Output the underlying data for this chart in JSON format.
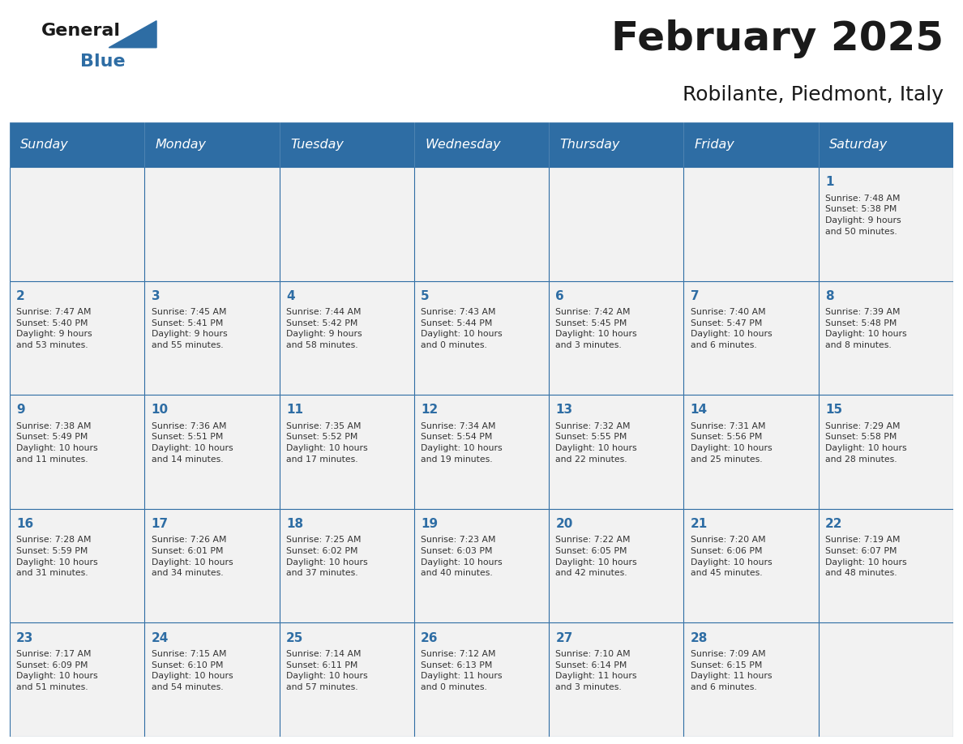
{
  "title": "February 2025",
  "subtitle": "Robilante, Piedmont, Italy",
  "days_of_week": [
    "Sunday",
    "Monday",
    "Tuesday",
    "Wednesday",
    "Thursday",
    "Friday",
    "Saturday"
  ],
  "header_bg": "#2E6DA4",
  "header_text": "#FFFFFF",
  "cell_bg_light": "#F2F2F2",
  "cell_bg_white": "#FFFFFF",
  "cell_border": "#2E6DA4",
  "day_num_color": "#2E6DA4",
  "info_text_color": "#333333",
  "title_color": "#1a1a1a",
  "logo_general_color": "#1a1a1a",
  "logo_blue_color": "#2E6DA4",
  "calendar_data": [
    [
      {
        "day": null,
        "info": ""
      },
      {
        "day": null,
        "info": ""
      },
      {
        "day": null,
        "info": ""
      },
      {
        "day": null,
        "info": ""
      },
      {
        "day": null,
        "info": ""
      },
      {
        "day": null,
        "info": ""
      },
      {
        "day": 1,
        "info": "Sunrise: 7:48 AM\nSunset: 5:38 PM\nDaylight: 9 hours\nand 50 minutes."
      }
    ],
    [
      {
        "day": 2,
        "info": "Sunrise: 7:47 AM\nSunset: 5:40 PM\nDaylight: 9 hours\nand 53 minutes."
      },
      {
        "day": 3,
        "info": "Sunrise: 7:45 AM\nSunset: 5:41 PM\nDaylight: 9 hours\nand 55 minutes."
      },
      {
        "day": 4,
        "info": "Sunrise: 7:44 AM\nSunset: 5:42 PM\nDaylight: 9 hours\nand 58 minutes."
      },
      {
        "day": 5,
        "info": "Sunrise: 7:43 AM\nSunset: 5:44 PM\nDaylight: 10 hours\nand 0 minutes."
      },
      {
        "day": 6,
        "info": "Sunrise: 7:42 AM\nSunset: 5:45 PM\nDaylight: 10 hours\nand 3 minutes."
      },
      {
        "day": 7,
        "info": "Sunrise: 7:40 AM\nSunset: 5:47 PM\nDaylight: 10 hours\nand 6 minutes."
      },
      {
        "day": 8,
        "info": "Sunrise: 7:39 AM\nSunset: 5:48 PM\nDaylight: 10 hours\nand 8 minutes."
      }
    ],
    [
      {
        "day": 9,
        "info": "Sunrise: 7:38 AM\nSunset: 5:49 PM\nDaylight: 10 hours\nand 11 minutes."
      },
      {
        "day": 10,
        "info": "Sunrise: 7:36 AM\nSunset: 5:51 PM\nDaylight: 10 hours\nand 14 minutes."
      },
      {
        "day": 11,
        "info": "Sunrise: 7:35 AM\nSunset: 5:52 PM\nDaylight: 10 hours\nand 17 minutes."
      },
      {
        "day": 12,
        "info": "Sunrise: 7:34 AM\nSunset: 5:54 PM\nDaylight: 10 hours\nand 19 minutes."
      },
      {
        "day": 13,
        "info": "Sunrise: 7:32 AM\nSunset: 5:55 PM\nDaylight: 10 hours\nand 22 minutes."
      },
      {
        "day": 14,
        "info": "Sunrise: 7:31 AM\nSunset: 5:56 PM\nDaylight: 10 hours\nand 25 minutes."
      },
      {
        "day": 15,
        "info": "Sunrise: 7:29 AM\nSunset: 5:58 PM\nDaylight: 10 hours\nand 28 minutes."
      }
    ],
    [
      {
        "day": 16,
        "info": "Sunrise: 7:28 AM\nSunset: 5:59 PM\nDaylight: 10 hours\nand 31 minutes."
      },
      {
        "day": 17,
        "info": "Sunrise: 7:26 AM\nSunset: 6:01 PM\nDaylight: 10 hours\nand 34 minutes."
      },
      {
        "day": 18,
        "info": "Sunrise: 7:25 AM\nSunset: 6:02 PM\nDaylight: 10 hours\nand 37 minutes."
      },
      {
        "day": 19,
        "info": "Sunrise: 7:23 AM\nSunset: 6:03 PM\nDaylight: 10 hours\nand 40 minutes."
      },
      {
        "day": 20,
        "info": "Sunrise: 7:22 AM\nSunset: 6:05 PM\nDaylight: 10 hours\nand 42 minutes."
      },
      {
        "day": 21,
        "info": "Sunrise: 7:20 AM\nSunset: 6:06 PM\nDaylight: 10 hours\nand 45 minutes."
      },
      {
        "day": 22,
        "info": "Sunrise: 7:19 AM\nSunset: 6:07 PM\nDaylight: 10 hours\nand 48 minutes."
      }
    ],
    [
      {
        "day": 23,
        "info": "Sunrise: 7:17 AM\nSunset: 6:09 PM\nDaylight: 10 hours\nand 51 minutes."
      },
      {
        "day": 24,
        "info": "Sunrise: 7:15 AM\nSunset: 6:10 PM\nDaylight: 10 hours\nand 54 minutes."
      },
      {
        "day": 25,
        "info": "Sunrise: 7:14 AM\nSunset: 6:11 PM\nDaylight: 10 hours\nand 57 minutes."
      },
      {
        "day": 26,
        "info": "Sunrise: 7:12 AM\nSunset: 6:13 PM\nDaylight: 11 hours\nand 0 minutes."
      },
      {
        "day": 27,
        "info": "Sunrise: 7:10 AM\nSunset: 6:14 PM\nDaylight: 11 hours\nand 3 minutes."
      },
      {
        "day": 28,
        "info": "Sunrise: 7:09 AM\nSunset: 6:15 PM\nDaylight: 11 hours\nand 6 minutes."
      },
      {
        "day": null,
        "info": ""
      }
    ]
  ]
}
